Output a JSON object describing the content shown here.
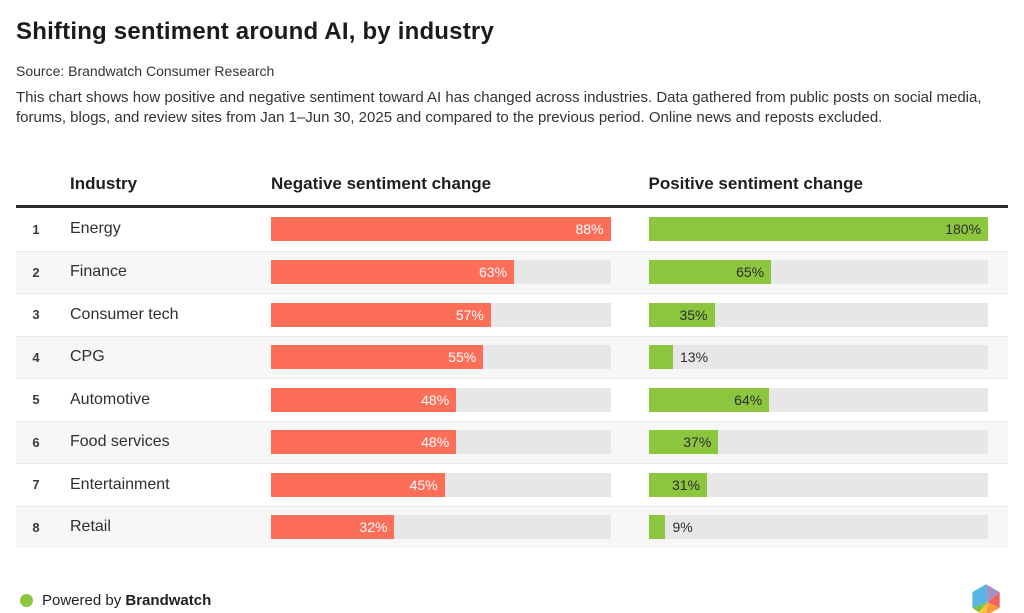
{
  "header": {
    "title": "Shifting sentiment around AI, by industry",
    "source": "Source: Brandwatch Consumer Research",
    "description": "This chart shows how positive and negative sentiment toward AI has changed across industries. Data gathered from public posts on social media, forums, blogs, and review sites from Jan 1–Jun 30, 2025 and compared to the previous period. Online news and reposts excluded."
  },
  "table": {
    "columns": {
      "industry": "Industry",
      "negative": "Negative sentiment change",
      "positive": "Positive sentiment change"
    },
    "rows": [
      {
        "rank": "1",
        "industry": "Energy",
        "negative": 88,
        "positive": 180
      },
      {
        "rank": "2",
        "industry": "Finance",
        "negative": 63,
        "positive": 65
      },
      {
        "rank": "3",
        "industry": "Consumer tech",
        "negative": 57,
        "positive": 35
      },
      {
        "rank": "4",
        "industry": "CPG",
        "negative": 55,
        "positive": 13
      },
      {
        "rank": "5",
        "industry": "Automotive",
        "negative": 48,
        "positive": 64
      },
      {
        "rank": "6",
        "industry": "Food services",
        "negative": 48,
        "positive": 37
      },
      {
        "rank": "7",
        "industry": "Entertainment",
        "negative": 45,
        "positive": 31
      },
      {
        "rank": "8",
        "industry": "Retail",
        "negative": 32,
        "positive": 9
      }
    ]
  },
  "chart_data": {
    "type": "bar",
    "orientation": "horizontal",
    "title": "Shifting sentiment around AI, by industry",
    "subtitle": "Source: Brandwatch Consumer Research",
    "categories": [
      "Energy",
      "Finance",
      "Consumer tech",
      "CPG",
      "Automotive",
      "Food services",
      "Entertainment",
      "Retail"
    ],
    "ranks": [
      1,
      2,
      3,
      4,
      5,
      6,
      7,
      8
    ],
    "series": [
      {
        "name": "Negative sentiment change",
        "unit": "%",
        "values": [
          88,
          63,
          57,
          55,
          48,
          48,
          45,
          32
        ],
        "scale_max": 88,
        "color": "#fc6e58"
      },
      {
        "name": "Positive sentiment change",
        "unit": "%",
        "values": [
          180,
          65,
          35,
          13,
          64,
          37,
          31,
          9
        ],
        "scale_max": 180,
        "color": "#8cc63f"
      }
    ],
    "value_labels": true,
    "legend_position": "column-headers",
    "grid": false
  },
  "colors": {
    "negative_bar": "#fc6e58",
    "positive_bar": "#8cc63f",
    "bar_track": "#e7e7e7",
    "alt_row_bg": "#f7f7f7",
    "header_rule": "#2d2d2d"
  },
  "footer": {
    "powered_by": "Powered by",
    "brand": "Brandwatch"
  }
}
